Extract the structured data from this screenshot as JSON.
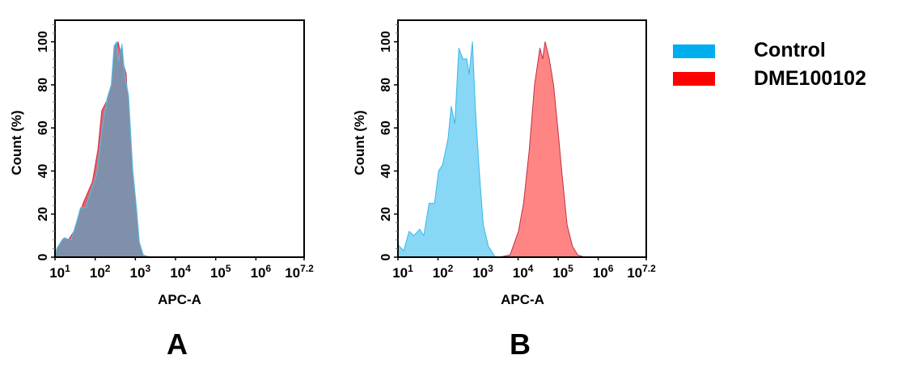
{
  "legend": {
    "items": [
      {
        "label": "Control",
        "color": "#00AEEF"
      },
      {
        "label": "DME100102",
        "color": "#FF0000"
      }
    ]
  },
  "chart_data": [
    {
      "type": "area",
      "panel_label": "A",
      "xlabel": "APC-A",
      "ylabel": "Count  (%)",
      "xscale": "log",
      "xlim": [
        10,
        15848932
      ],
      "ylim": [
        0,
        110
      ],
      "grid": false,
      "x_ticks": [
        {
          "base": "10",
          "exp": "1",
          "value": 10
        },
        {
          "base": "10",
          "exp": "2",
          "value": 100
        },
        {
          "base": "10",
          "exp": "3",
          "value": 1000
        },
        {
          "base": "10",
          "exp": "4",
          "value": 10000
        },
        {
          "base": "10",
          "exp": "5",
          "value": 100000
        },
        {
          "base": "10",
          "exp": "6",
          "value": 1000000
        },
        {
          "base": "10",
          "exp": "7.2",
          "value": 15848932
        }
      ],
      "y_ticks": [
        "0",
        "20",
        "40",
        "60",
        "80",
        "100"
      ],
      "series": [
        {
          "name": "DME100102",
          "fill": "#E2606E",
          "stroke": "#D03040",
          "x": [
            10,
            11,
            17,
            32,
            50,
            85,
            117,
            146,
            200,
            270,
            370,
            464,
            590,
            790,
            1000,
            1260,
            1470
          ],
          "y": [
            0,
            3,
            5,
            13,
            25,
            35,
            50,
            68,
            73,
            82,
            100,
            92,
            85,
            40,
            25,
            5,
            0
          ]
        },
        {
          "name": "Control",
          "fill": "#8090AA",
          "stroke": "#4FC3F0",
          "x": [
            10,
            11,
            15,
            17,
            25,
            34,
            43,
            58,
            79,
            108,
            126,
            158,
            200,
            251,
            295,
            340,
            380,
            464,
            540,
            680,
            860,
            1080,
            1260,
            1580,
            2340
          ],
          "y": [
            0,
            4,
            8,
            9,
            8,
            16,
            23,
            23,
            31,
            38,
            48,
            63,
            74,
            80,
            98,
            100,
            91,
            99,
            85,
            75,
            41,
            22,
            7,
            1,
            0
          ]
        }
      ]
    },
    {
      "type": "area",
      "panel_label": "B",
      "xlabel": "APC-A",
      "ylabel": "Count  (%)",
      "xscale": "log",
      "xlim": [
        10,
        15848932
      ],
      "ylim": [
        0,
        110
      ],
      "grid": false,
      "x_ticks": [
        {
          "base": "10",
          "exp": "1",
          "value": 10
        },
        {
          "base": "10",
          "exp": "2",
          "value": 100
        },
        {
          "base": "10",
          "exp": "3",
          "value": 1000
        },
        {
          "base": "10",
          "exp": "4",
          "value": 10000
        },
        {
          "base": "10",
          "exp": "5",
          "value": 100000
        },
        {
          "base": "10",
          "exp": "6",
          "value": 1000000
        },
        {
          "base": "10",
          "exp": "7.2",
          "value": 15848932
        }
      ],
      "y_ticks": [
        "0",
        "20",
        "40",
        "60",
        "80",
        "100"
      ],
      "series": [
        {
          "name": "Control",
          "fill": "#87D7F5",
          "stroke": "#3BB8E8",
          "x": [
            10,
            11,
            14,
            19,
            25,
            35,
            44,
            60,
            82,
            103,
            130,
            178,
            214,
            263,
            331,
            417,
            525,
            600,
            724,
            851,
            1070,
            1350,
            1820,
            2690
          ],
          "y": [
            6,
            5,
            3,
            12,
            10,
            13,
            10,
            25,
            25,
            40,
            43,
            55,
            70,
            62,
            97,
            92,
            92,
            85,
            100,
            70,
            40,
            15,
            5,
            0
          ]
        },
        {
          "name": "DME100102",
          "fill": "#FF8585",
          "stroke": "#C03040",
          "x": [
            3390,
            6310,
            10200,
            13700,
            19000,
            25800,
            35100,
            41100,
            47400,
            60000,
            77000,
            98000,
            123000,
            167000,
            228000,
            309000,
            460000
          ],
          "y": [
            0,
            1,
            12,
            25,
            50,
            80,
            97,
            92,
            100,
            92,
            80,
            60,
            40,
            15,
            5,
            1,
            0
          ]
        }
      ]
    }
  ]
}
